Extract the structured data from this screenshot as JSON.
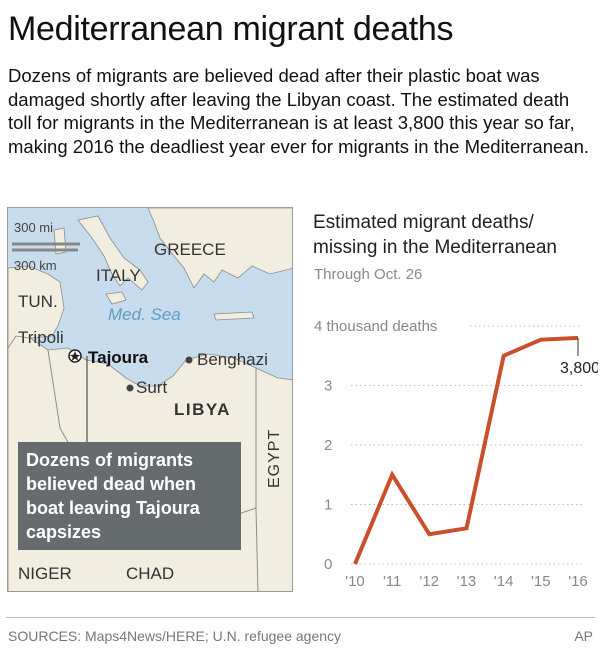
{
  "title": "Mediterranean migrant deaths",
  "intro": "Dozens of migrants are believed dead after their plastic boat was damaged shortly after leaving the Libyan coast. The estimated death toll for migrants in the Mediterranean is at least 3,800 this year so far, making 2016 the deadliest year ever for migrants in the Mediterranean.",
  "map": {
    "scale_mi": "300 mi",
    "scale_km": "300 km",
    "labels": {
      "greece": "GREECE",
      "italy": "ITALY",
      "tun": "TUN.",
      "sea": "Med. Sea",
      "tripoli": "Tripoli",
      "tajoura": "Tajoura",
      "benghazi": "Benghazi",
      "surt": "Surt",
      "libya": "LIBYA",
      "egypt": "EGYPT",
      "niger": "NIGER",
      "chad": "CHAD"
    },
    "callout": "Dozens of migrants believed dead when boat leaving Tajoura capsizes",
    "colors": {
      "sea": "#c7dcec",
      "land": "#f1ede0",
      "border": "#9a9a9a"
    }
  },
  "chart_data": {
    "type": "line",
    "title": "Estimated migrant deaths/ missing in the Mediterranean",
    "subtitle": "Through Oct. 26",
    "categories": [
      "'10",
      "'11",
      "'12",
      "'13",
      "'14",
      "'15",
      "'16"
    ],
    "values": [
      0.0,
      1.5,
      0.5,
      0.6,
      3.5,
      3.77,
      3.8
    ],
    "y_ticks": [
      "0",
      "1",
      "2",
      "3",
      "4 thousand deaths"
    ],
    "ylim": [
      0,
      4
    ],
    "grid": true,
    "end_label": "3,800",
    "color": "#c9502a"
  },
  "footer": {
    "sources": "SOURCES: Maps4News/HERE; U.N. refugee agency",
    "credit": "AP"
  }
}
